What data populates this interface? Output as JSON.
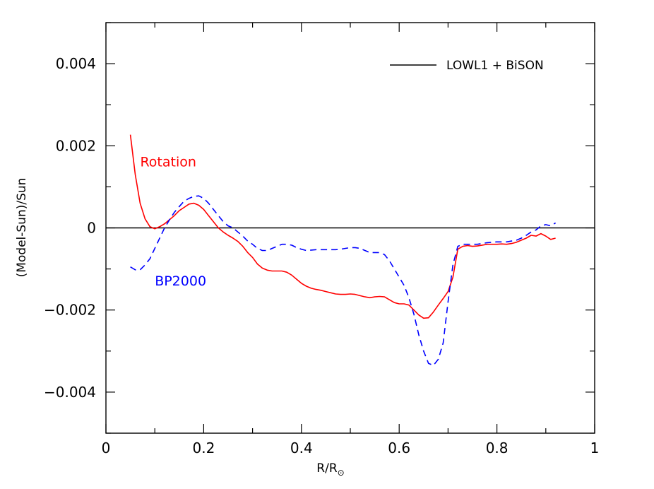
{
  "chart_data": {
    "type": "line",
    "xlabel": "R/R",
    "xlabel_sub": "⊙",
    "ylabel": "(Model-Sun)/Sun",
    "xlim": [
      0,
      1
    ],
    "ylim": [
      -0.005,
      0.005
    ],
    "xticks": [
      0,
      0.2,
      0.4,
      0.6,
      0.8,
      1
    ],
    "xtick_labels": [
      "0",
      "0.2",
      "0.4",
      "0.6",
      "0.8",
      "1"
    ],
    "yticks": [
      0.004,
      0.002,
      0,
      -0.002,
      -0.004
    ],
    "ytick_labels": [
      "0.004",
      "0.002",
      "0",
      "−0.002",
      "−0.004"
    ],
    "grid": false,
    "legend": {
      "position": "top-right",
      "entries": [
        {
          "label": "LOWL1 + BiSON",
          "color": "#000000",
          "style": "solid"
        }
      ]
    },
    "reference_line": {
      "y": 0,
      "color": "#000000"
    },
    "series": [
      {
        "name": "Rotation",
        "color": "#ff0000",
        "style": "solid",
        "x": [
          0.05,
          0.06,
          0.07,
          0.08,
          0.09,
          0.1,
          0.11,
          0.12,
          0.13,
          0.14,
          0.15,
          0.16,
          0.17,
          0.18,
          0.19,
          0.2,
          0.21,
          0.22,
          0.23,
          0.24,
          0.25,
          0.26,
          0.27,
          0.28,
          0.29,
          0.3,
          0.31,
          0.32,
          0.33,
          0.34,
          0.35,
          0.36,
          0.37,
          0.38,
          0.39,
          0.4,
          0.41,
          0.42,
          0.43,
          0.44,
          0.45,
          0.46,
          0.47,
          0.48,
          0.49,
          0.5,
          0.51,
          0.52,
          0.53,
          0.54,
          0.55,
          0.56,
          0.57,
          0.58,
          0.59,
          0.6,
          0.61,
          0.62,
          0.63,
          0.64,
          0.65,
          0.66,
          0.67,
          0.68,
          0.69,
          0.7,
          0.71,
          0.72,
          0.73,
          0.74,
          0.75,
          0.76,
          0.77,
          0.78,
          0.79,
          0.8,
          0.81,
          0.82,
          0.83,
          0.84,
          0.85,
          0.86,
          0.87,
          0.88,
          0.89,
          0.9,
          0.91,
          0.92
        ],
        "y": [
          0.00227,
          0.0013,
          0.0006,
          0.00022,
          3e-05,
          -2e-05,
          3e-05,
          0.0001,
          0.0002,
          0.0003,
          0.00042,
          0.0005,
          0.00058,
          0.0006,
          0.00055,
          0.00045,
          0.0003,
          0.00015,
          0.0,
          -0.0001,
          -0.00018,
          -0.00025,
          -0.00033,
          -0.00045,
          -0.0006,
          -0.00072,
          -0.00088,
          -0.00098,
          -0.00103,
          -0.00105,
          -0.00105,
          -0.00105,
          -0.00108,
          -0.00115,
          -0.00125,
          -0.00135,
          -0.00142,
          -0.00147,
          -0.0015,
          -0.00152,
          -0.00155,
          -0.00158,
          -0.00161,
          -0.00162,
          -0.00162,
          -0.00161,
          -0.00162,
          -0.00165,
          -0.00168,
          -0.0017,
          -0.00168,
          -0.00167,
          -0.00168,
          -0.00175,
          -0.00182,
          -0.00185,
          -0.00185,
          -0.00188,
          -0.002,
          -0.00212,
          -0.0022,
          -0.00219,
          -0.00205,
          -0.00188,
          -0.00172,
          -0.00155,
          -0.0012,
          -0.00052,
          -0.00045,
          -0.00043,
          -0.00045,
          -0.00044,
          -0.00042,
          -0.0004,
          -0.0004,
          -0.0004,
          -0.00039,
          -0.0004,
          -0.00038,
          -0.00035,
          -0.0003,
          -0.00025,
          -0.00018,
          -0.0002,
          -0.00014,
          -0.0002,
          -0.00028,
          -0.00025
        ]
      },
      {
        "name": "BP2000",
        "color": "#0000ff",
        "style": "dashed",
        "x": [
          0.05,
          0.06,
          0.07,
          0.08,
          0.09,
          0.1,
          0.11,
          0.12,
          0.13,
          0.14,
          0.15,
          0.16,
          0.17,
          0.18,
          0.19,
          0.2,
          0.21,
          0.22,
          0.23,
          0.24,
          0.25,
          0.26,
          0.27,
          0.28,
          0.29,
          0.3,
          0.31,
          0.32,
          0.33,
          0.34,
          0.35,
          0.36,
          0.37,
          0.38,
          0.39,
          0.4,
          0.41,
          0.42,
          0.43,
          0.44,
          0.45,
          0.46,
          0.47,
          0.48,
          0.49,
          0.5,
          0.51,
          0.52,
          0.53,
          0.54,
          0.55,
          0.56,
          0.57,
          0.58,
          0.59,
          0.6,
          0.61,
          0.62,
          0.63,
          0.64,
          0.65,
          0.66,
          0.67,
          0.68,
          0.69,
          0.7,
          0.71,
          0.72,
          0.73,
          0.74,
          0.75,
          0.76,
          0.77,
          0.78,
          0.79,
          0.8,
          0.81,
          0.82,
          0.83,
          0.84,
          0.85,
          0.86,
          0.87,
          0.88,
          0.89,
          0.9,
          0.91,
          0.92
        ],
        "y": [
          -0.00095,
          -0.00102,
          -0.00102,
          -0.0009,
          -0.00075,
          -0.0005,
          -0.00025,
          0.0,
          0.0002,
          0.00038,
          0.00052,
          0.00065,
          0.00072,
          0.00077,
          0.00078,
          0.00072,
          0.0006,
          0.00045,
          0.0003,
          0.00015,
          5e-05,
          0.0,
          -0.0001,
          -0.0002,
          -0.00032,
          -0.0004,
          -0.0005,
          -0.00055,
          -0.00055,
          -0.0005,
          -0.00045,
          -0.0004,
          -0.0004,
          -0.00042,
          -0.00048,
          -0.00052,
          -0.00055,
          -0.00054,
          -0.00053,
          -0.00053,
          -0.00053,
          -0.00053,
          -0.00053,
          -0.00052,
          -0.0005,
          -0.00048,
          -0.00048,
          -0.0005,
          -0.00055,
          -0.0006,
          -0.0006,
          -0.0006,
          -0.00065,
          -0.0008,
          -0.001,
          -0.0012,
          -0.0014,
          -0.0017,
          -0.0021,
          -0.0026,
          -0.003,
          -0.0033,
          -0.00335,
          -0.0032,
          -0.0028,
          -0.0018,
          -0.0009,
          -0.00045,
          -0.0004,
          -0.0004,
          -0.0004,
          -0.0004,
          -0.00038,
          -0.00036,
          -0.00035,
          -0.00034,
          -0.00034,
          -0.00034,
          -0.00032,
          -0.0003,
          -0.00025,
          -0.00018,
          -0.0001,
          -5e-05,
          5e-05,
          8e-05,
          5e-05,
          0.00012
        ]
      }
    ],
    "annotations": [
      {
        "text": "Rotation",
        "color": "#ff0000",
        "x": 0.07,
        "y": 0.0015
      },
      {
        "text": "BP2000",
        "color": "#0000ff",
        "x": 0.1,
        "y": -0.0014
      }
    ]
  }
}
